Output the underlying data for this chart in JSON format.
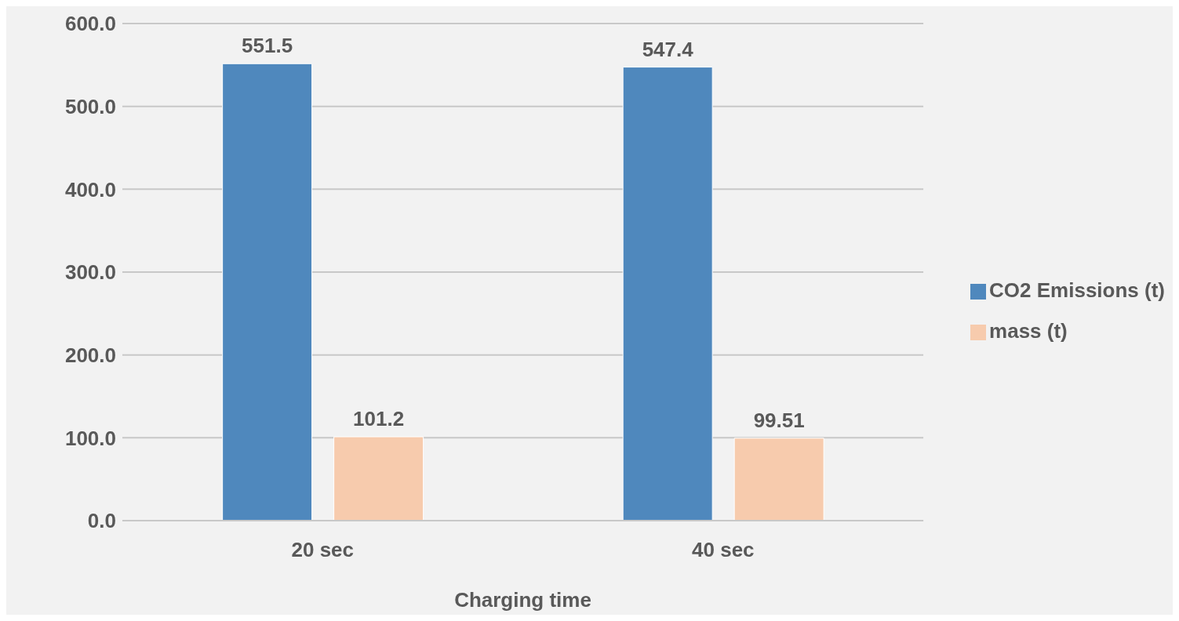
{
  "chart_data": {
    "type": "bar",
    "xlabel": "Charging time",
    "categories": [
      "20 sec",
      "40 sec"
    ],
    "series": [
      {
        "name": "CO2 Emissions (t)",
        "color": "#4f88bd",
        "values": [
          551.5,
          547.4
        ]
      },
      {
        "name": "mass (t)",
        "color": "#f7cbad",
        "values": [
          101.2,
          99.51
        ]
      }
    ],
    "ylim": [
      0,
      600
    ],
    "yticks": [
      {
        "value": 0,
        "label": "0.0"
      },
      {
        "value": 100,
        "label": "100.0"
      },
      {
        "value": 200,
        "label": "200.0"
      },
      {
        "value": 300,
        "label": "300.0"
      },
      {
        "value": 400,
        "label": "400.0"
      },
      {
        "value": 500,
        "label": "500.0"
      },
      {
        "value": 600,
        "label": "600.0"
      }
    ],
    "grid": "y",
    "legend": "right",
    "data_labels": true
  }
}
